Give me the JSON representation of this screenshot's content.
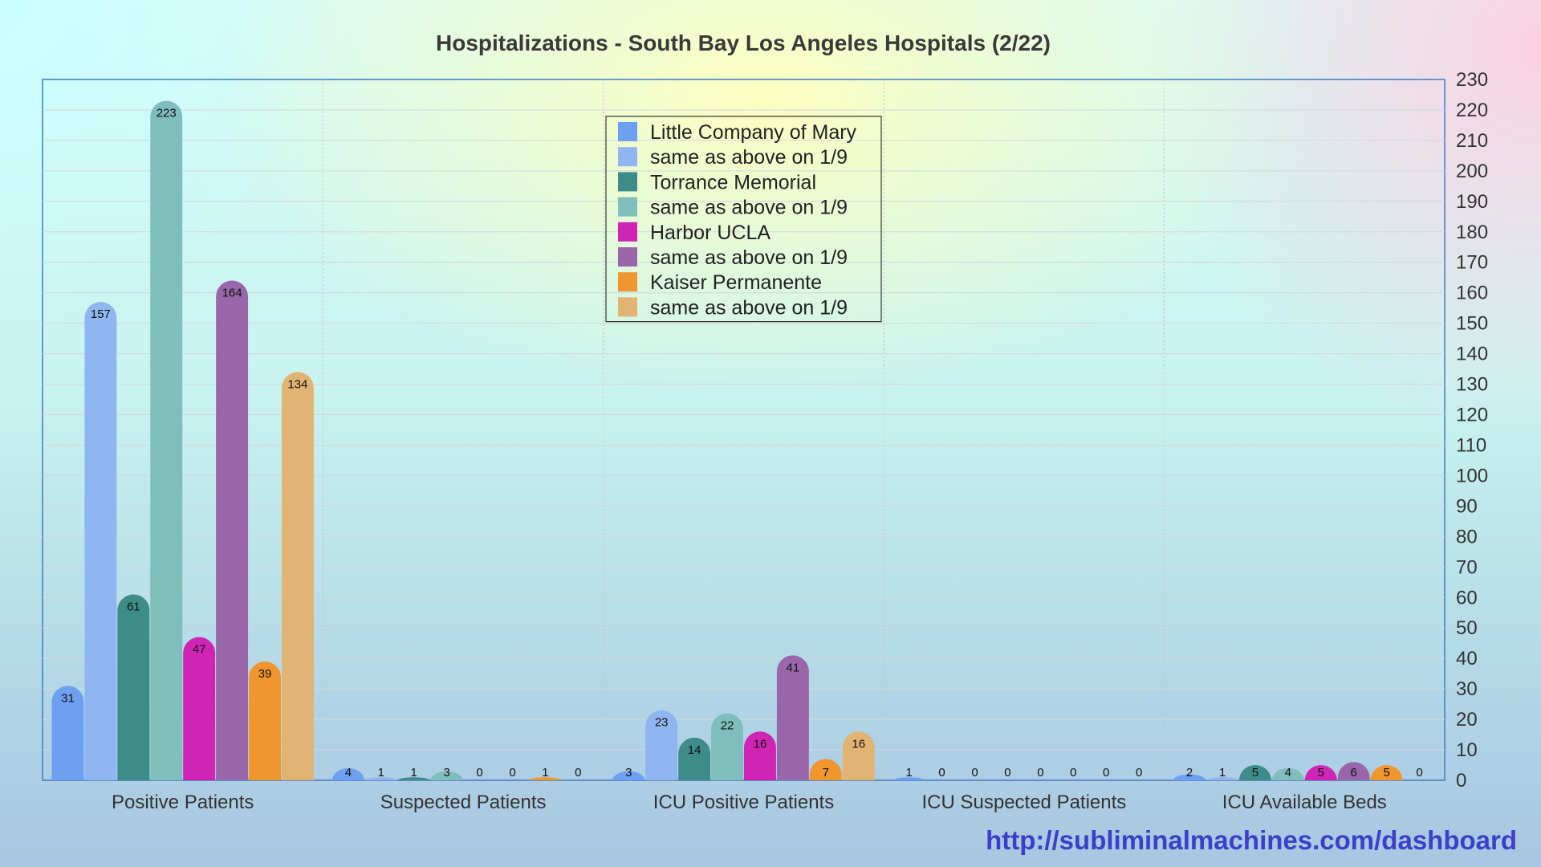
{
  "chart_data": {
    "type": "bar",
    "title": "Hospitalizations - South Bay Los Angeles Hospitals (2/22)",
    "categories": [
      "Positive Patients",
      "Suspected Patients",
      "ICU Positive Patients",
      "ICU Suspected Patients",
      "ICU Available Beds"
    ],
    "series": [
      {
        "name": "Little Company of Mary",
        "color": "#6ea0f2",
        "values": [
          31,
          4,
          3,
          1,
          2
        ]
      },
      {
        "name": "same as above on 1/9",
        "color": "#8fb6f0",
        "values": [
          157,
          1,
          23,
          0,
          1
        ]
      },
      {
        "name": "Torrance Memorial",
        "color": "#3d8c8a",
        "values": [
          61,
          1,
          14,
          0,
          5
        ]
      },
      {
        "name": "same as above on 1/9",
        "color": "#80bdbd",
        "values": [
          223,
          3,
          22,
          0,
          4
        ]
      },
      {
        "name": "Harbor UCLA",
        "color": "#d024b4",
        "values": [
          47,
          0,
          16,
          0,
          5
        ]
      },
      {
        "name": "same as above on 1/9",
        "color": "#9a66aa",
        "values": [
          164,
          0,
          41,
          0,
          6
        ]
      },
      {
        "name": "Kaiser Permanente",
        "color": "#f0962e",
        "values": [
          39,
          1,
          7,
          0,
          5
        ]
      },
      {
        "name": "same as above on 1/9",
        "color": "#e2b473",
        "values": [
          134,
          0,
          16,
          0,
          0
        ]
      }
    ],
    "ylim": [
      0,
      230
    ],
    "ytick_step": 10,
    "yaxis_side": "right",
    "grid": true,
    "legend_position": "top-center",
    "xlabel": "",
    "ylabel": ""
  },
  "footer": {
    "source_url": "http://subliminalmachines.com/dashboard",
    "link_color": "#3b3fc9"
  }
}
